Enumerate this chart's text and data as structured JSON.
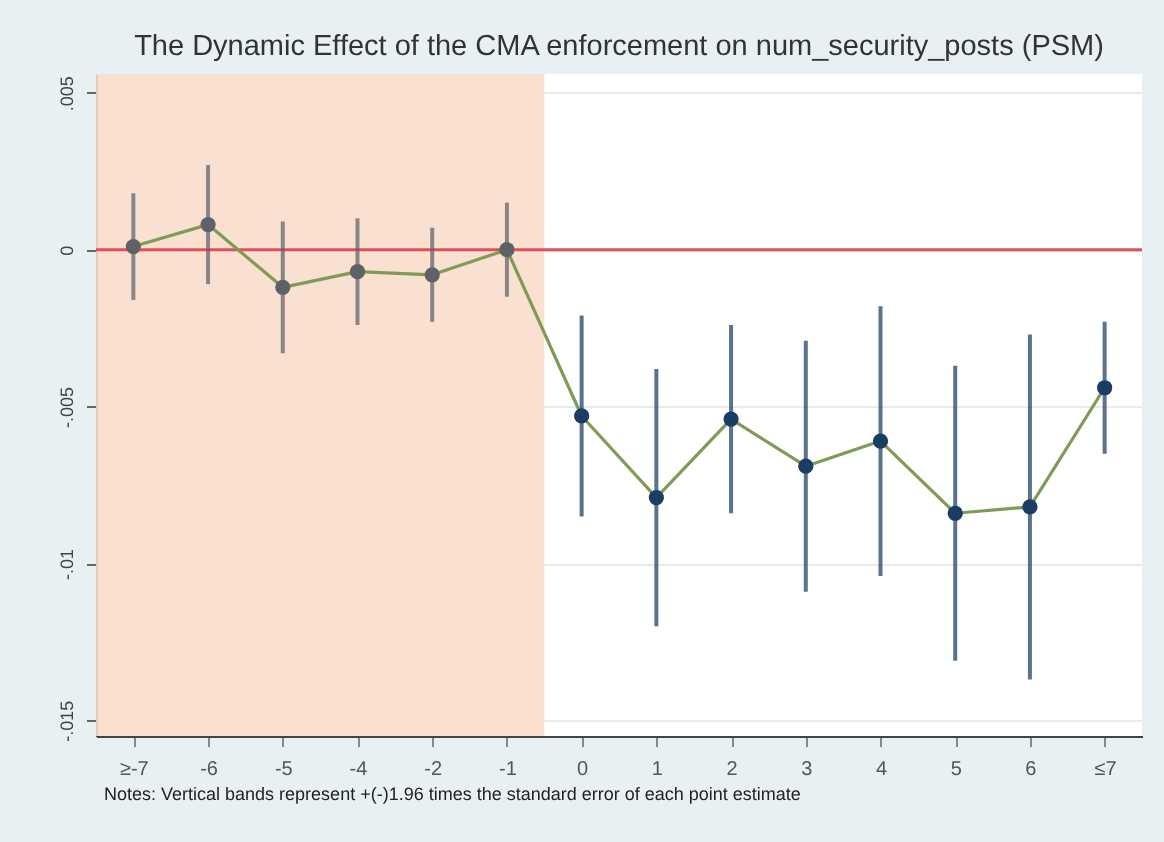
{
  "chart_data": {
    "type": "line",
    "title": "The Dynamic Effect of the CMA enforcement on num_security_posts (PSM)",
    "categories": [
      "≥-7",
      "-6",
      "-5",
      "-4",
      "-2",
      "-1",
      "0",
      "1",
      "2",
      "3",
      "4",
      "5",
      "6",
      "≤7"
    ],
    "series": [
      {
        "color": "#7f9b55",
        "colors": [
          "#5e6166",
          "#5e6166",
          "#5e6166",
          "#5e6166",
          "#5e6166",
          "#5e6166",
          "#1a3d63",
          "#1a3d63",
          "#1a3d63",
          "#1a3d63",
          "#1a3d63",
          "#1a3d63",
          "#1a3d63",
          "#1a3d63"
        ],
        "values": [
          0.0001,
          0.0008,
          -0.0012,
          -0.0007,
          -0.0008,
          0.0,
          -0.0053,
          -0.0079,
          -0.0054,
          -0.0069,
          -0.0061,
          -0.0084,
          -0.0082,
          -0.0044
        ],
        "errors": [
          0.0017,
          0.0019,
          0.0021,
          0.0017,
          0.0015,
          0.0015,
          0.0032,
          0.0041,
          0.003,
          0.004,
          0.0043,
          0.0047,
          0.0055,
          0.0021
        ]
      }
    ],
    "ylim": [
      -0.0155,
      0.0056
    ],
    "yticks": [
      {
        "value": 0.005,
        "label": ".005"
      },
      0,
      {
        "value": -0.005,
        "label": "-.005"
      },
      {
        "value": -0.01,
        "label": "-.01"
      },
      {
        "value": -0.015,
        "label": "-.015"
      }
    ],
    "ref_lines": [
      {
        "axis": "y",
        "value": 0,
        "color": "#e0505a"
      }
    ],
    "bands": [
      {
        "axis": "x",
        "from": "≥-7",
        "to": "-1",
        "color": "#f9dcc9"
      }
    ],
    "grid": "y",
    "marker": "circle",
    "line_style": "solid",
    "annotations": [
      "Notes: Vertical bands represent +(-)1.96 times the standard error of each point estimate"
    ]
  }
}
